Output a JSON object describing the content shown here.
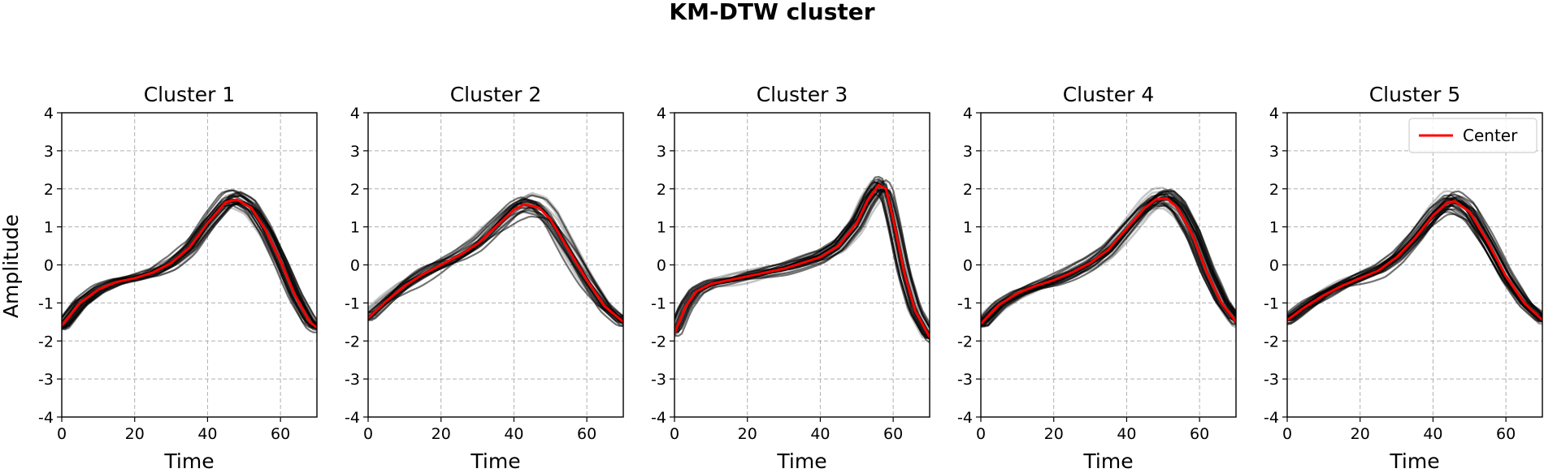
{
  "figure": {
    "title": "KM-DTW cluster",
    "ylabel": "Amplitude",
    "legend": {
      "label": "Center",
      "panel": 5,
      "placement": "top-right",
      "color": "#ff0000"
    },
    "member_color": "#000000",
    "center_color": "#ff0000"
  },
  "chart_data": [
    {
      "type": "line",
      "title": "Cluster 1",
      "xlabel": "Time",
      "ylabel": "Amplitude",
      "xlim": [
        0,
        70
      ],
      "ylim": [
        -4,
        4
      ],
      "xticks": [
        "0",
        "20",
        "40",
        "60"
      ],
      "yticks": [
        "-4",
        "-3",
        "-2",
        "-1",
        "0",
        "1",
        "2",
        "3",
        "4"
      ],
      "grid": true,
      "series": [
        {
          "name": "Center",
          "x": [
            0,
            5,
            10,
            15,
            20,
            25,
            30,
            35,
            40,
            45,
            48,
            52,
            56,
            60,
            64,
            68,
            70
          ],
          "y": [
            -1.6,
            -1.0,
            -0.65,
            -0.45,
            -0.35,
            -0.2,
            0.05,
            0.45,
            1.1,
            1.65,
            1.72,
            1.5,
            0.9,
            0.1,
            -0.8,
            -1.5,
            -1.65
          ]
        }
      ],
      "member_count": 28,
      "member_spread": 0.22
    },
    {
      "type": "line",
      "title": "Cluster 2",
      "xlabel": "Time",
      "ylabel": "Amplitude",
      "xlim": [
        0,
        70
      ],
      "ylim": [
        -4,
        4
      ],
      "xticks": [
        "0",
        "20",
        "40",
        "60"
      ],
      "yticks": [
        "-4",
        "-3",
        "-2",
        "-1",
        "0",
        "1",
        "2",
        "3",
        "4"
      ],
      "grid": true,
      "series": [
        {
          "name": "Center",
          "x": [
            0,
            5,
            10,
            15,
            20,
            25,
            30,
            35,
            40,
            43,
            47,
            50,
            55,
            60,
            65,
            70
          ],
          "y": [
            -1.4,
            -0.95,
            -0.55,
            -0.25,
            0.0,
            0.25,
            0.55,
            1.0,
            1.45,
            1.6,
            1.5,
            1.2,
            0.4,
            -0.4,
            -1.1,
            -1.5
          ]
        }
      ],
      "member_count": 22,
      "member_spread": 0.3
    },
    {
      "type": "line",
      "title": "Cluster 3",
      "xlabel": "Time",
      "ylabel": "Amplitude",
      "xlim": [
        0,
        70
      ],
      "ylim": [
        -4,
        4
      ],
      "xticks": [
        "0",
        "20",
        "40",
        "60"
      ],
      "yticks": [
        "-4",
        "-3",
        "-2",
        "-1",
        "0",
        "1",
        "2",
        "3",
        "4"
      ],
      "grid": true,
      "series": [
        {
          "name": "Center",
          "x": [
            0,
            3,
            6,
            10,
            15,
            20,
            25,
            30,
            35,
            40,
            45,
            50,
            53,
            56,
            58,
            60,
            63,
            66,
            70
          ],
          "y": [
            -1.8,
            -1.1,
            -0.7,
            -0.5,
            -0.4,
            -0.3,
            -0.2,
            -0.1,
            0.05,
            0.2,
            0.5,
            1.1,
            1.7,
            2.1,
            2.0,
            1.2,
            -0.2,
            -1.2,
            -1.9
          ]
        }
      ],
      "member_count": 26,
      "member_spread": 0.2
    },
    {
      "type": "line",
      "title": "Cluster 4",
      "xlabel": "Time",
      "ylabel": "Amplitude",
      "xlim": [
        0,
        70
      ],
      "ylim": [
        -4,
        4
      ],
      "xticks": [
        "0",
        "20",
        "40",
        "60"
      ],
      "yticks": [
        "-4",
        "-3",
        "-2",
        "-1",
        "0",
        "1",
        "2",
        "3",
        "4"
      ],
      "grid": true,
      "series": [
        {
          "name": "Center",
          "x": [
            0,
            5,
            10,
            15,
            20,
            25,
            30,
            35,
            40,
            45,
            48,
            51,
            54,
            58,
            62,
            66,
            70
          ],
          "y": [
            -1.55,
            -1.05,
            -0.75,
            -0.55,
            -0.4,
            -0.2,
            0.05,
            0.4,
            0.95,
            1.5,
            1.72,
            1.75,
            1.5,
            0.8,
            -0.2,
            -1.0,
            -1.5
          ]
        }
      ],
      "member_count": 32,
      "member_spread": 0.22
    },
    {
      "type": "line",
      "title": "Cluster 5",
      "xlabel": "Time",
      "ylabel": "Amplitude",
      "xlim": [
        0,
        70
      ],
      "ylim": [
        -4,
        4
      ],
      "xticks": [
        "0",
        "20",
        "40",
        "60"
      ],
      "yticks": [
        "-4",
        "-3",
        "-2",
        "-1",
        "0",
        "1",
        "2",
        "3",
        "4"
      ],
      "grid": true,
      "legend": [
        "Center"
      ],
      "series": [
        {
          "name": "Center",
          "x": [
            0,
            5,
            10,
            15,
            20,
            25,
            30,
            35,
            40,
            44,
            46,
            50,
            55,
            60,
            65,
            70
          ],
          "y": [
            -1.45,
            -1.1,
            -0.8,
            -0.55,
            -0.35,
            -0.15,
            0.2,
            0.7,
            1.3,
            1.65,
            1.67,
            1.4,
            0.6,
            -0.3,
            -1.0,
            -1.45
          ]
        }
      ],
      "member_count": 26,
      "member_spread": 0.25
    }
  ]
}
